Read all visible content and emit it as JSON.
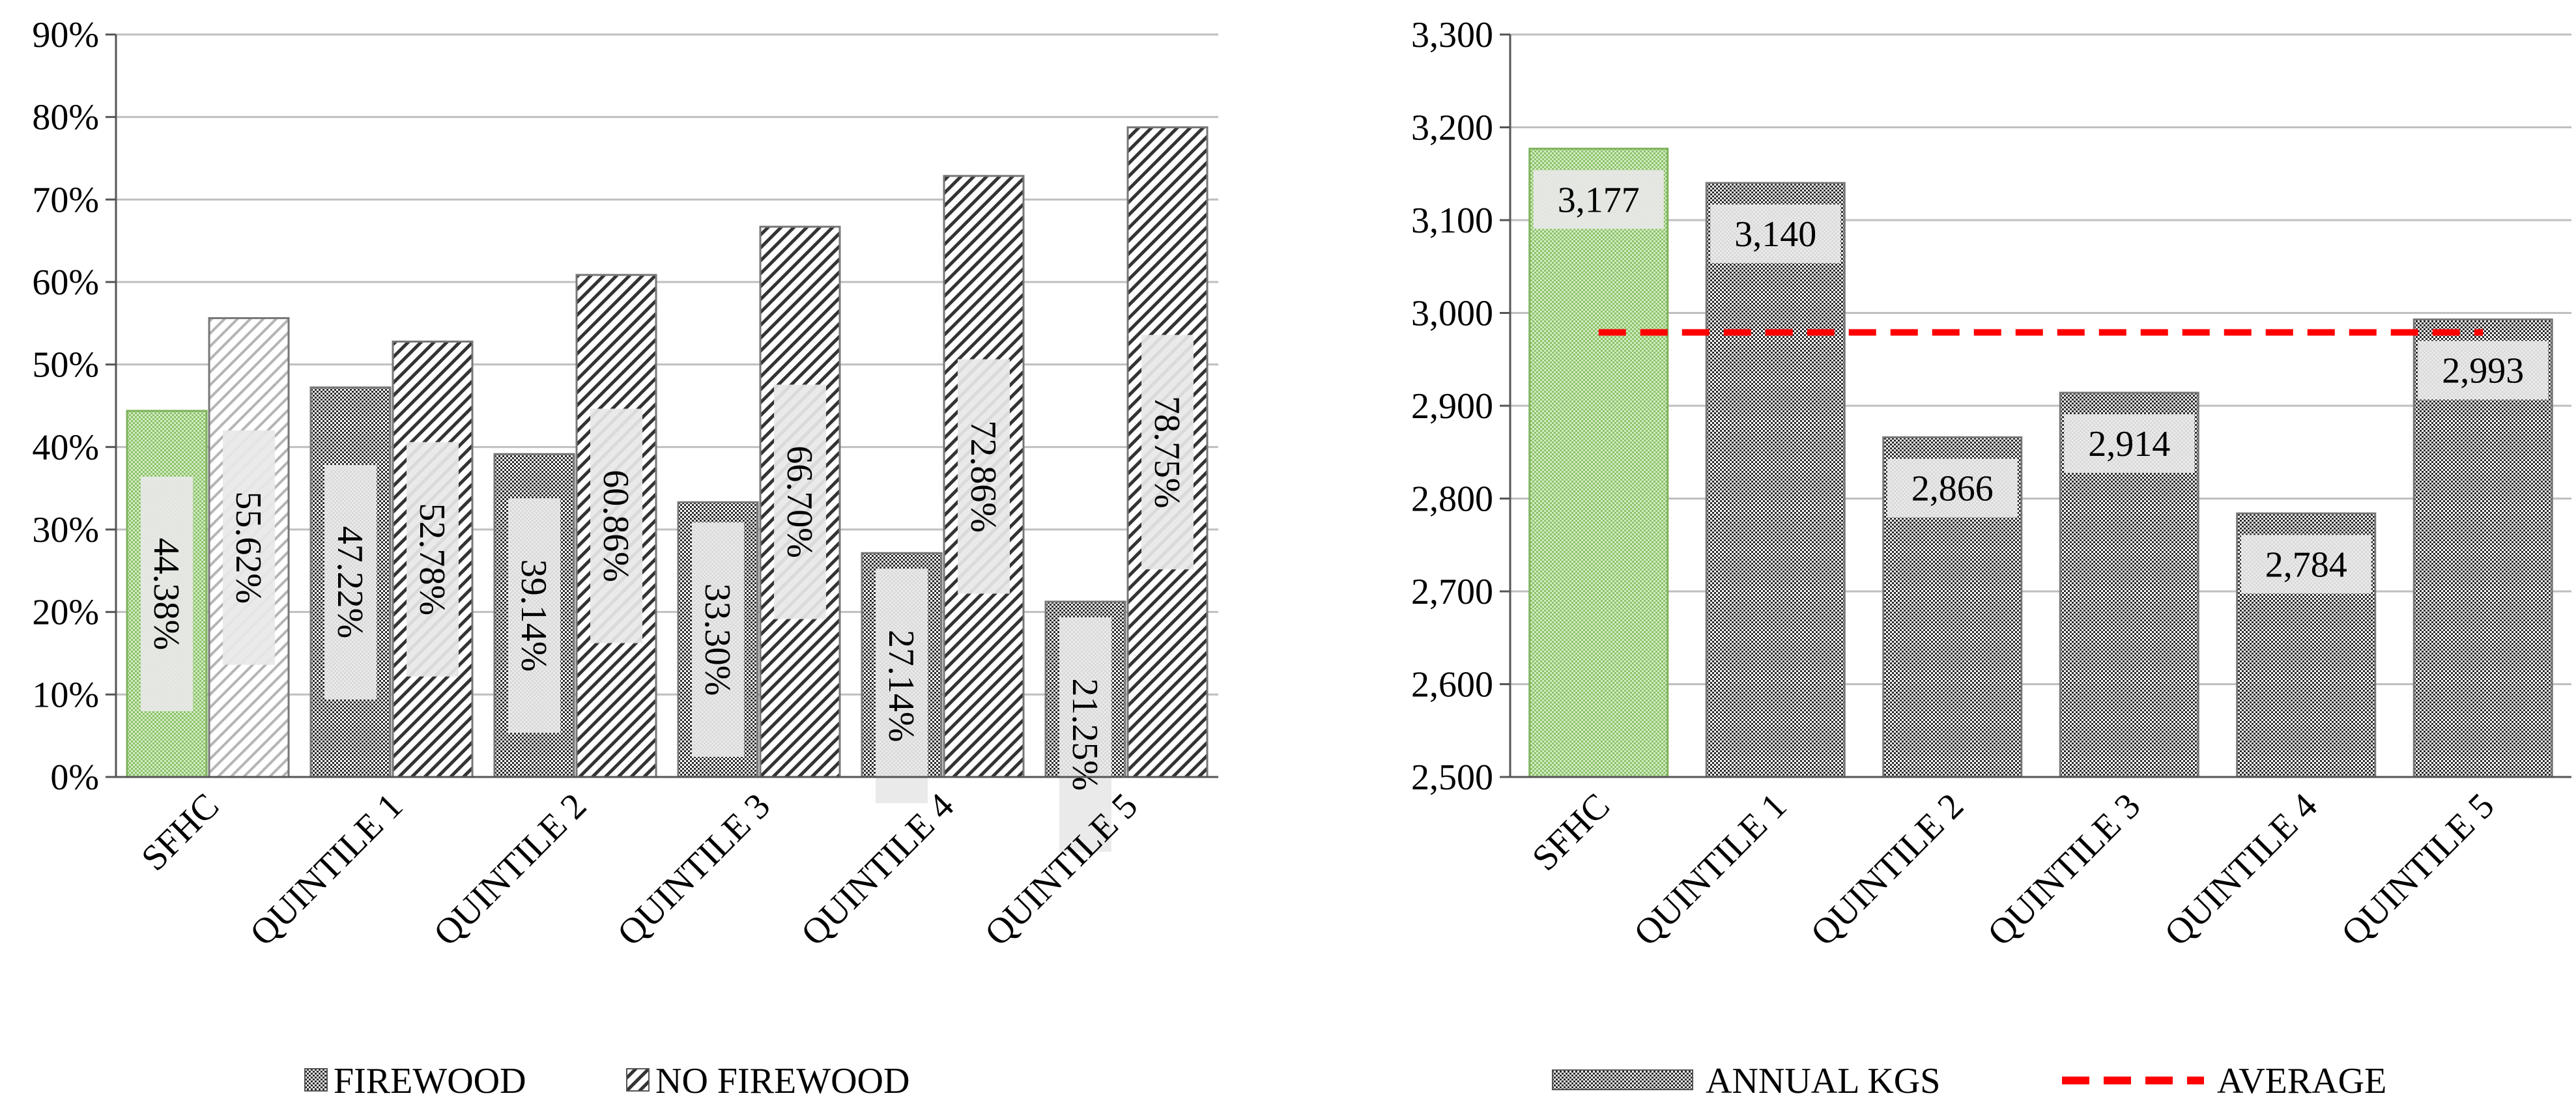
{
  "chart_data": [
    {
      "type": "bar",
      "categories": [
        "SFHC",
        "QUINTILE 1",
        "QUINTILE 2",
        "QUINTILE 3",
        "QUINTILE 4",
        "QUINTILE 5"
      ],
      "series": [
        {
          "name": "FIREWOOD",
          "values": [
            44.38,
            47.22,
            39.14,
            33.3,
            27.14,
            21.25
          ],
          "labels": [
            "44.38%",
            "47.22%",
            "39.14%",
            "33.30%",
            "27.14%",
            "21.25%"
          ]
        },
        {
          "name": "NO FIREWOOD",
          "values": [
            55.62,
            52.78,
            60.86,
            66.7,
            72.86,
            78.75
          ],
          "labels": [
            "55.62%",
            "52.78%",
            "60.86%",
            "66.70%",
            "72.86%",
            "78.75%"
          ]
        }
      ],
      "ylim": [
        0,
        90
      ],
      "yticks": [
        0,
        10,
        20,
        30,
        40,
        50,
        60,
        70,
        80,
        90
      ],
      "ytick_labels": [
        "0%",
        "10%",
        "20%",
        "30%",
        "40%",
        "50%",
        "60%",
        "70%",
        "80%",
        "90%"
      ],
      "grid": true,
      "legend": "bottom",
      "highlight_color": "#a9d18e"
    },
    {
      "type": "bar",
      "categories": [
        "SFHC",
        "QUINTILE 1",
        "QUINTILE 2",
        "QUINTILE 3",
        "QUINTILE 4",
        "QUINTILE 5"
      ],
      "series": [
        {
          "name": "ANNUAL KGS",
          "values": [
            3177,
            3140,
            2866,
            2914,
            2784,
            2993
          ],
          "labels": [
            "3,177",
            "3,140",
            "2,866",
            "2,914",
            "2,784",
            "2,993"
          ]
        }
      ],
      "average": {
        "name": "AVERAGE",
        "value": 2979,
        "color": "#ff0000"
      },
      "ylim": [
        2500,
        3300
      ],
      "yticks": [
        2500,
        2600,
        2700,
        2800,
        2900,
        3000,
        3100,
        3200,
        3300
      ],
      "ytick_labels": [
        "2,500",
        "2,600",
        "2,700",
        "2,800",
        "2,900",
        "3,000",
        "3,100",
        "3,200",
        "3,300"
      ],
      "grid": true,
      "legend": "bottom",
      "highlight_color": "#a9d18e"
    }
  ]
}
